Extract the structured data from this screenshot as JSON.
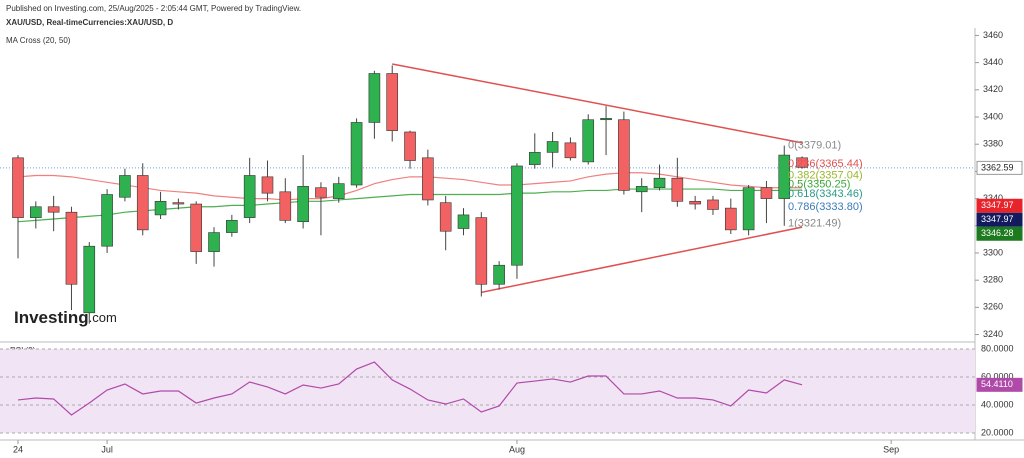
{
  "chart_data": {
    "type": "candlestick",
    "title": "Published on Investing.com, 25/Aug/2025 - 2:05:44 GMT, Powered by TradingView.",
    "subtitle": "XAU/USD, Real-timeCurrencies:XAU/USD, D",
    "indicator": "MA Cross (20, 50)",
    "logo": "Investing",
    "logo_suffix": ".com",
    "categories": [
      "24",
      null,
      null,
      null,
      null,
      "Jul",
      null,
      null,
      null,
      null,
      null,
      null,
      null,
      null,
      null,
      null,
      null,
      null,
      null,
      null,
      null,
      null,
      null,
      null,
      null,
      null,
      null,
      null,
      "Aug",
      null,
      null,
      null,
      null,
      null,
      null,
      null,
      null,
      null,
      null,
      null,
      null,
      null,
      null,
      null,
      null,
      null,
      null,
      null,
      null,
      "Sep"
    ],
    "open": [
      3370,
      3326,
      3334,
      3330,
      3256,
      3305,
      3341,
      3357,
      3328,
      3337,
      3336,
      3301,
      3315,
      3326,
      3356,
      3345,
      3323,
      3348,
      3340,
      3350,
      3396,
      3432,
      3389,
      3370,
      3337,
      3318,
      3326,
      3277,
      3291,
      3365,
      3374,
      3381,
      3367,
      3398,
      3398,
      3345,
      3348,
      3355,
      3338,
      3339,
      3333,
      3317,
      3348,
      3340,
      3370,
      null,
      null,
      null,
      null,
      null
    ],
    "high": [
      3372,
      3338,
      3342,
      3334,
      3308,
      3347,
      3362,
      3366,
      3345,
      3340,
      3338,
      3319,
      3328,
      3370,
      3368,
      3355,
      3372,
      3352,
      3356,
      3399,
      3434,
      3438,
      3390,
      3376,
      3342,
      3333,
      3330,
      3294,
      3366,
      3388,
      3389,
      3385,
      3402,
      3408,
      3404,
      3355,
      3365,
      3370,
      3342,
      3342,
      3340,
      3350,
      3353,
      3379,
      3371,
      null,
      null,
      null,
      null,
      null
    ],
    "low": [
      3296,
      3318,
      3316,
      3258,
      3248,
      3300,
      3338,
      3313,
      3325,
      3332,
      3292,
      3290,
      3312,
      3322,
      3338,
      3322,
      3318,
      3313,
      3337,
      3348,
      3384,
      3382,
      3362,
      3335,
      3302,
      3313,
      3268,
      3273,
      3281,
      3362,
      3363,
      3368,
      3365,
      3372,
      3343,
      3330,
      3346,
      3334,
      3332,
      3328,
      3314,
      3313,
      3322,
      3320,
      3362,
      null,
      null,
      null,
      null,
      null
    ],
    "close": [
      3326,
      3334,
      3330,
      3277,
      3305,
      3343,
      3357,
      3317,
      3338,
      3336,
      3301,
      3315,
      3324,
      3357,
      3344,
      3324,
      3349,
      3341,
      3351,
      3396,
      3432,
      3390,
      3368,
      3339,
      3316,
      3328,
      3277,
      3291,
      3364,
      3374,
      3382,
      3370,
      3398,
      3399,
      3346,
      3349,
      3355,
      3338,
      3336,
      3332,
      3317,
      3348,
      3340,
      3372,
      3363,
      null,
      null,
      null,
      null,
      null
    ],
    "up_color": "#2db24f",
    "down_color": "#f26262",
    "ma_lines": [
      {
        "color": "#f08080",
        "values": [
          3356,
          3357,
          3357,
          3356,
          3354,
          3352,
          3350,
          3348,
          3346,
          3345,
          3344,
          3342,
          3341,
          3340,
          3340,
          3339,
          3340,
          3340,
          3342,
          3346,
          3351,
          3354,
          3356,
          3356,
          3355,
          3354,
          3352,
          3350,
          3350,
          3351,
          3352,
          3353,
          3356,
          3358,
          3359,
          3359,
          3358,
          3356,
          3354,
          3352,
          3350,
          3349,
          3348,
          3348,
          3347.97,
          null,
          null,
          null,
          null,
          null
        ]
      },
      {
        "color": "#4caf50",
        "values": [
          3323,
          3324,
          3325,
          3326,
          3327,
          3328,
          3330,
          3331,
          3332,
          3333,
          3334,
          3334,
          3335,
          3335,
          3336,
          3337,
          3338,
          3338,
          3339,
          3340,
          3341,
          3342,
          3343,
          3343,
          3343,
          3343,
          3343,
          3343,
          3344,
          3344,
          3345,
          3345,
          3346,
          3346,
          3347,
          3347,
          3347,
          3347,
          3347,
          3347,
          3346,
          3346,
          3346,
          3346,
          3346.28,
          null,
          null,
          null,
          null,
          null
        ]
      }
    ],
    "ylim": [
      3236,
      3464
    ],
    "yticks": [
      3240,
      3260,
      3280,
      3300,
      3320,
      3340,
      3360,
      3380,
      3400,
      3420,
      3440,
      3460
    ],
    "last_price": 3362.59,
    "price_labels": [
      {
        "value": 3347.97,
        "color": "#e8232a"
      },
      {
        "value": 3347.97,
        "color": "#131a5e"
      },
      {
        "value": 3346.28,
        "color": "#1e7a1e"
      }
    ],
    "fib_levels": [
      {
        "value": 3379.01,
        "label": "0(3379.01)",
        "color": "#888888"
      },
      {
        "value": 3365.44,
        "label": "0.236(3365.44)",
        "color": "#e05050"
      },
      {
        "value": 3357.04,
        "label": "0.382(3357.04)",
        "color": "#9ab82a"
      },
      {
        "value": 3350.25,
        "label": "0.5(3350.25)",
        "color": "#3aa83a"
      },
      {
        "value": 3343.46,
        "label": "0.618(3343.46)",
        "color": "#2a9a8a"
      },
      {
        "value": 3333.8,
        "label": "0.786(3333.80)",
        "color": "#3a7ab8"
      },
      {
        "value": 3321.49,
        "label": "1(3321.49)",
        "color": "#888888"
      }
    ],
    "trendline_color": "#e05050",
    "trendlines": [
      {
        "x": [
          21,
          44
        ],
        "y": [
          3439,
          3381
        ]
      },
      {
        "x": [
          26,
          44
        ],
        "y": [
          3271,
          3319
        ]
      }
    ],
    "rsi": {
      "title": "RSI (9)",
      "color": "#b04aa8",
      "values": [
        43.6,
        45,
        44.3,
        32.9,
        41.4,
        50.7,
        55,
        47.9,
        50,
        50,
        41.4,
        45,
        47.9,
        56.4,
        52.9,
        47.9,
        54.3,
        52.1,
        55,
        65.7,
        70.7,
        57.9,
        51.4,
        43.6,
        40.7,
        44.3,
        35,
        39.3,
        55.7,
        57.1,
        58.6,
        56.4,
        60.7,
        60.7,
        47.9,
        47.9,
        50,
        45,
        45,
        43.6,
        39.3,
        50.7,
        48.6,
        57.9,
        54.411,
        null,
        null,
        null,
        null,
        null
      ],
      "ylim": [
        15,
        85
      ],
      "yticks": [
        {
          "value": 20,
          "label": "20.0000"
        },
        {
          "value": 40,
          "label": "40.0000"
        },
        {
          "value": 60,
          "label": "60.0000"
        },
        {
          "value": 80,
          "label": "80.0000"
        }
      ],
      "last": {
        "value": 54.411,
        "label": "54.4110"
      }
    }
  }
}
